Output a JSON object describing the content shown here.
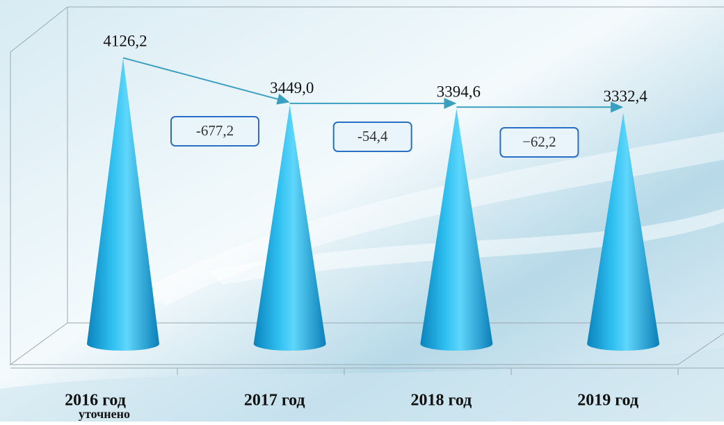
{
  "chart_data": {
    "type": "cone",
    "categories": [
      "2016 год",
      "2017 год",
      "2018 год",
      "2019 год"
    ],
    "category_notes": [
      "уточнено",
      null,
      null,
      null
    ],
    "values": [
      4126.2,
      3449.0,
      3394.6,
      3332.4
    ],
    "value_labels": [
      "4126,2",
      "3449,0",
      "3394,6",
      "3332,4"
    ],
    "changes": [
      "-677,2",
      "-54,4",
      "−62,2"
    ],
    "color": "#1aa3dc",
    "ylim": [
      0,
      4500
    ]
  }
}
